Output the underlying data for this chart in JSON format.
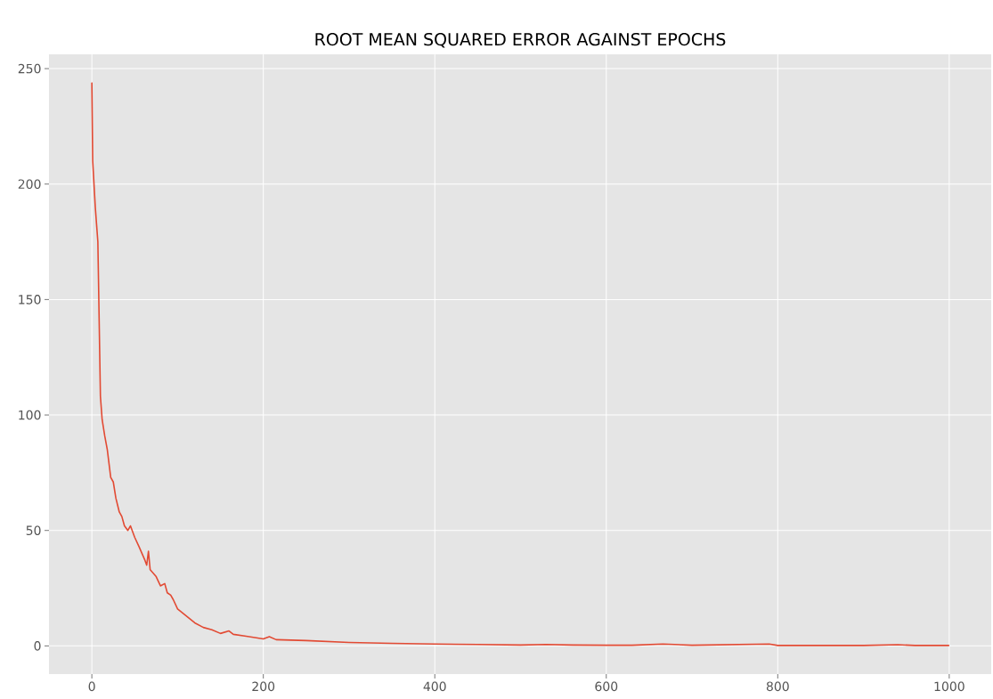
{
  "chart_data": {
    "type": "line",
    "title": "ROOT MEAN SQUARED ERROR AGAINST EPOCHS",
    "xlim": [
      -50,
      1049
    ],
    "ylim": [
      -12.2,
      256.2
    ],
    "xticks": [
      0,
      200,
      400,
      600,
      800,
      1000
    ],
    "yticks": [
      0,
      50,
      100,
      150,
      200,
      250
    ],
    "grid": true,
    "series": [
      {
        "color": "#e24a33",
        "x": [
          0,
          1,
          4,
          7,
          10,
          12,
          15,
          18,
          22,
          25,
          28,
          32,
          35,
          38,
          42,
          45,
          50,
          55,
          62,
          64,
          66,
          68,
          75,
          80,
          85,
          88,
          92,
          95,
          100,
          110,
          120,
          130,
          140,
          150,
          160,
          165,
          180,
          200,
          207,
          215,
          250,
          300,
          350,
          400,
          450,
          500,
          530,
          560,
          600,
          630,
          666,
          700,
          790,
          800,
          900,
          940,
          960,
          1000
        ],
        "values": [
          244,
          210,
          190,
          175,
          108,
          98,
          91,
          85,
          73,
          71,
          64,
          58,
          56,
          52,
          50,
          52,
          47,
          43,
          37,
          35,
          41,
          33,
          30,
          26,
          27,
          23,
          22,
          20,
          16,
          13,
          10,
          8,
          7,
          5.4,
          6.5,
          5,
          4.2,
          3,
          4,
          2.7,
          2.3,
          1.5,
          1.1,
          0.8,
          0.6,
          0.4,
          0.6,
          0.4,
          0.3,
          0.3,
          0.8,
          0.3,
          0.8,
          0.2,
          0.2,
          0.5,
          0.2,
          0.2
        ]
      }
    ]
  }
}
